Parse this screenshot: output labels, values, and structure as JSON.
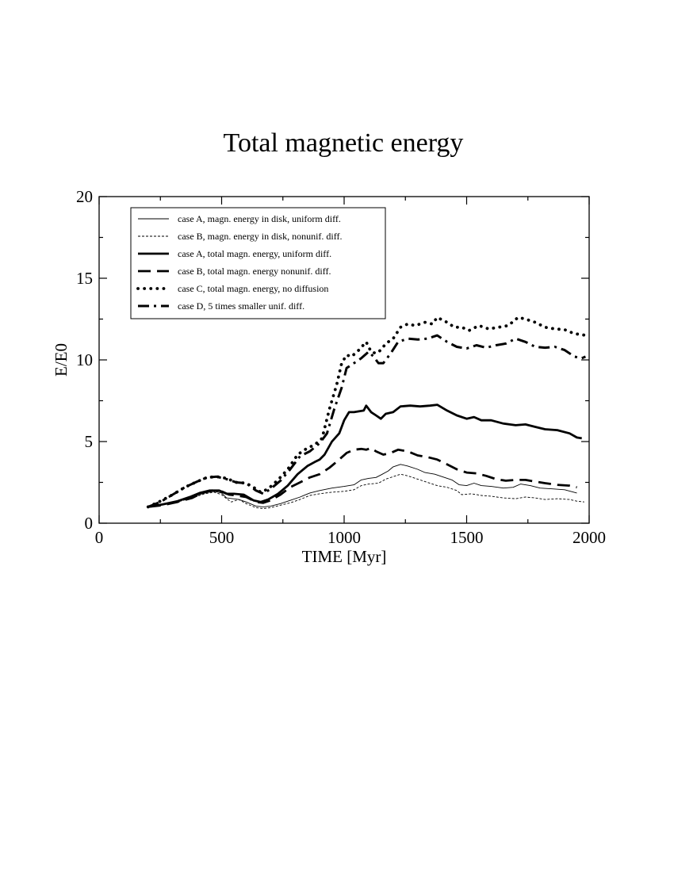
{
  "chart_data": {
    "type": "line",
    "title": "Total magnetic energy",
    "xlabel": "TIME [Myr]",
    "ylabel": "E/E0",
    "xlim": [
      0,
      2000
    ],
    "ylim": [
      0,
      20
    ],
    "xticks": [
      0,
      500,
      1000,
      1500,
      2000
    ],
    "yticks": [
      0,
      5,
      10,
      15,
      20
    ],
    "x_minor_step": 250,
    "y_minor_step": 2.5,
    "grid": false,
    "legend_position": "top-left",
    "series": [
      {
        "name": "case A, magn. energy in disk, uniform diff.",
        "style": "thin-solid",
        "points": [
          [
            200,
            1.0
          ],
          [
            260,
            1.15
          ],
          [
            320,
            1.35
          ],
          [
            380,
            1.6
          ],
          [
            430,
            1.85
          ],
          [
            470,
            1.95
          ],
          [
            500,
            1.85
          ],
          [
            520,
            1.55
          ],
          [
            545,
            1.5
          ],
          [
            570,
            1.45
          ],
          [
            600,
            1.3
          ],
          [
            640,
            1.05
          ],
          [
            670,
            1.0
          ],
          [
            700,
            1.05
          ],
          [
            740,
            1.2
          ],
          [
            780,
            1.4
          ],
          [
            820,
            1.6
          ],
          [
            860,
            1.85
          ],
          [
            900,
            2.0
          ],
          [
            950,
            2.15
          ],
          [
            1000,
            2.25
          ],
          [
            1040,
            2.35
          ],
          [
            1070,
            2.65
          ],
          [
            1100,
            2.75
          ],
          [
            1130,
            2.8
          ],
          [
            1150,
            2.95
          ],
          [
            1180,
            3.2
          ],
          [
            1200,
            3.45
          ],
          [
            1230,
            3.6
          ],
          [
            1260,
            3.5
          ],
          [
            1300,
            3.3
          ],
          [
            1330,
            3.1
          ],
          [
            1370,
            3.0
          ],
          [
            1400,
            2.85
          ],
          [
            1440,
            2.65
          ],
          [
            1470,
            2.35
          ],
          [
            1500,
            2.3
          ],
          [
            1530,
            2.45
          ],
          [
            1560,
            2.3
          ],
          [
            1600,
            2.25
          ],
          [
            1650,
            2.15
          ],
          [
            1690,
            2.2
          ],
          [
            1720,
            2.4
          ],
          [
            1760,
            2.3
          ],
          [
            1800,
            2.15
          ],
          [
            1850,
            2.1
          ],
          [
            1900,
            2.05
          ],
          [
            1950,
            1.85
          ]
        ]
      },
      {
        "name": "case B, magn. energy in disk, nonunif. diff.",
        "style": "thin-dashed",
        "points": [
          [
            200,
            1.0
          ],
          [
            260,
            1.15
          ],
          [
            320,
            1.3
          ],
          [
            380,
            1.55
          ],
          [
            430,
            1.8
          ],
          [
            470,
            1.9
          ],
          [
            500,
            1.75
          ],
          [
            520,
            1.5
          ],
          [
            540,
            1.3
          ],
          [
            570,
            1.45
          ],
          [
            600,
            1.2
          ],
          [
            640,
            0.95
          ],
          [
            670,
            0.9
          ],
          [
            700,
            0.95
          ],
          [
            740,
            1.1
          ],
          [
            780,
            1.25
          ],
          [
            820,
            1.45
          ],
          [
            860,
            1.7
          ],
          [
            900,
            1.8
          ],
          [
            950,
            1.9
          ],
          [
            1000,
            1.95
          ],
          [
            1040,
            2.05
          ],
          [
            1070,
            2.3
          ],
          [
            1100,
            2.4
          ],
          [
            1140,
            2.45
          ],
          [
            1170,
            2.7
          ],
          [
            1200,
            2.85
          ],
          [
            1230,
            3.0
          ],
          [
            1260,
            2.9
          ],
          [
            1300,
            2.7
          ],
          [
            1340,
            2.5
          ],
          [
            1380,
            2.3
          ],
          [
            1420,
            2.2
          ],
          [
            1460,
            2.0
          ],
          [
            1480,
            1.75
          ],
          [
            1520,
            1.8
          ],
          [
            1560,
            1.7
          ],
          [
            1600,
            1.65
          ],
          [
            1650,
            1.55
          ],
          [
            1700,
            1.5
          ],
          [
            1740,
            1.6
          ],
          [
            1780,
            1.55
          ],
          [
            1820,
            1.45
          ],
          [
            1870,
            1.5
          ],
          [
            1920,
            1.45
          ],
          [
            1950,
            1.35
          ],
          [
            1980,
            1.3
          ]
        ]
      },
      {
        "name": "case A, total magn. energy, uniform diff.",
        "style": "thick-solid",
        "points": [
          [
            200,
            1.0
          ],
          [
            260,
            1.15
          ],
          [
            320,
            1.35
          ],
          [
            370,
            1.6
          ],
          [
            410,
            1.85
          ],
          [
            450,
            2.0
          ],
          [
            490,
            2.0
          ],
          [
            520,
            1.8
          ],
          [
            550,
            1.8
          ],
          [
            590,
            1.75
          ],
          [
            630,
            1.4
          ],
          [
            660,
            1.3
          ],
          [
            690,
            1.45
          ],
          [
            730,
            1.8
          ],
          [
            770,
            2.3
          ],
          [
            810,
            3.0
          ],
          [
            850,
            3.5
          ],
          [
            880,
            3.75
          ],
          [
            900,
            3.9
          ],
          [
            920,
            4.2
          ],
          [
            950,
            5.0
          ],
          [
            980,
            5.5
          ],
          [
            1000,
            6.3
          ],
          [
            1020,
            6.8
          ],
          [
            1040,
            6.8
          ],
          [
            1060,
            6.85
          ],
          [
            1080,
            6.9
          ],
          [
            1090,
            7.2
          ],
          [
            1110,
            6.8
          ],
          [
            1130,
            6.6
          ],
          [
            1150,
            6.4
          ],
          [
            1170,
            6.7
          ],
          [
            1200,
            6.8
          ],
          [
            1230,
            7.15
          ],
          [
            1270,
            7.2
          ],
          [
            1310,
            7.15
          ],
          [
            1350,
            7.2
          ],
          [
            1380,
            7.25
          ],
          [
            1420,
            6.9
          ],
          [
            1460,
            6.6
          ],
          [
            1500,
            6.4
          ],
          [
            1530,
            6.5
          ],
          [
            1560,
            6.3
          ],
          [
            1600,
            6.3
          ],
          [
            1650,
            6.1
          ],
          [
            1700,
            6.0
          ],
          [
            1740,
            6.05
          ],
          [
            1780,
            5.9
          ],
          [
            1820,
            5.75
          ],
          [
            1870,
            5.7
          ],
          [
            1920,
            5.5
          ],
          [
            1950,
            5.25
          ],
          [
            1970,
            5.2
          ]
        ]
      },
      {
        "name": "case B, total magn. energy nonunif. diff.",
        "style": "thick-dash",
        "points": [
          [
            200,
            1.0
          ],
          [
            260,
            1.1
          ],
          [
            320,
            1.3
          ],
          [
            380,
            1.55
          ],
          [
            420,
            1.85
          ],
          [
            460,
            2.0
          ],
          [
            500,
            1.95
          ],
          [
            530,
            1.75
          ],
          [
            560,
            1.7
          ],
          [
            600,
            1.6
          ],
          [
            640,
            1.3
          ],
          [
            670,
            1.25
          ],
          [
            700,
            1.4
          ],
          [
            740,
            1.75
          ],
          [
            780,
            2.2
          ],
          [
            820,
            2.5
          ],
          [
            860,
            2.8
          ],
          [
            900,
            3.0
          ],
          [
            940,
            3.4
          ],
          [
            980,
            3.9
          ],
          [
            1010,
            4.3
          ],
          [
            1040,
            4.5
          ],
          [
            1070,
            4.55
          ],
          [
            1090,
            4.5
          ],
          [
            1110,
            4.6
          ],
          [
            1130,
            4.4
          ],
          [
            1160,
            4.2
          ],
          [
            1190,
            4.3
          ],
          [
            1220,
            4.5
          ],
          [
            1260,
            4.4
          ],
          [
            1300,
            4.15
          ],
          [
            1340,
            4.05
          ],
          [
            1380,
            3.9
          ],
          [
            1420,
            3.6
          ],
          [
            1460,
            3.3
          ],
          [
            1500,
            3.1
          ],
          [
            1540,
            3.05
          ],
          [
            1580,
            2.9
          ],
          [
            1620,
            2.7
          ],
          [
            1660,
            2.6
          ],
          [
            1700,
            2.65
          ],
          [
            1740,
            2.65
          ],
          [
            1780,
            2.55
          ],
          [
            1820,
            2.45
          ],
          [
            1870,
            2.35
          ],
          [
            1920,
            2.3
          ],
          [
            1950,
            2.2
          ]
        ]
      },
      {
        "name": "case C, total magn. energy, no diffusion",
        "style": "dotted",
        "points": [
          [
            200,
            1.0
          ],
          [
            250,
            1.35
          ],
          [
            300,
            1.75
          ],
          [
            350,
            2.2
          ],
          [
            400,
            2.55
          ],
          [
            440,
            2.8
          ],
          [
            480,
            2.85
          ],
          [
            520,
            2.75
          ],
          [
            560,
            2.5
          ],
          [
            600,
            2.45
          ],
          [
            630,
            2.2
          ],
          [
            660,
            1.9
          ],
          [
            690,
            2.1
          ],
          [
            730,
            2.65
          ],
          [
            770,
            3.3
          ],
          [
            810,
            4.2
          ],
          [
            850,
            4.6
          ],
          [
            880,
            4.8
          ],
          [
            910,
            5.2
          ],
          [
            940,
            7.0
          ],
          [
            970,
            8.5
          ],
          [
            990,
            9.8
          ],
          [
            1010,
            10.3
          ],
          [
            1030,
            10.2
          ],
          [
            1060,
            10.6
          ],
          [
            1090,
            11.1
          ],
          [
            1110,
            10.5
          ],
          [
            1130,
            10.4
          ],
          [
            1150,
            10.6
          ],
          [
            1170,
            11.0
          ],
          [
            1200,
            11.3
          ],
          [
            1230,
            12.0
          ],
          [
            1260,
            12.2
          ],
          [
            1290,
            12.1
          ],
          [
            1330,
            12.3
          ],
          [
            1360,
            12.2
          ],
          [
            1380,
            12.6
          ],
          [
            1420,
            12.3
          ],
          [
            1450,
            12.0
          ],
          [
            1480,
            12.0
          ],
          [
            1510,
            11.8
          ],
          [
            1550,
            12.1
          ],
          [
            1590,
            11.9
          ],
          [
            1630,
            12.0
          ],
          [
            1670,
            12.1
          ],
          [
            1710,
            12.6
          ],
          [
            1740,
            12.5
          ],
          [
            1780,
            12.3
          ],
          [
            1820,
            12.0
          ],
          [
            1860,
            11.9
          ],
          [
            1900,
            11.85
          ],
          [
            1940,
            11.6
          ],
          [
            1970,
            11.55
          ],
          [
            1985,
            11.5
          ]
        ]
      },
      {
        "name": "case D, 5 times smaller unif. diff.",
        "style": "dash-dot",
        "points": [
          [
            200,
            1.0
          ],
          [
            250,
            1.3
          ],
          [
            300,
            1.75
          ],
          [
            350,
            2.2
          ],
          [
            400,
            2.55
          ],
          [
            440,
            2.8
          ],
          [
            480,
            2.85
          ],
          [
            520,
            2.7
          ],
          [
            560,
            2.5
          ],
          [
            600,
            2.45
          ],
          [
            640,
            2.0
          ],
          [
            670,
            1.8
          ],
          [
            700,
            2.1
          ],
          [
            740,
            2.6
          ],
          [
            780,
            3.3
          ],
          [
            820,
            4.1
          ],
          [
            860,
            4.4
          ],
          [
            900,
            4.9
          ],
          [
            930,
            5.5
          ],
          [
            960,
            7.0
          ],
          [
            990,
            8.3
          ],
          [
            1010,
            9.5
          ],
          [
            1040,
            9.8
          ],
          [
            1070,
            10.1
          ],
          [
            1100,
            10.5
          ],
          [
            1120,
            10.2
          ],
          [
            1140,
            9.8
          ],
          [
            1160,
            9.8
          ],
          [
            1190,
            10.4
          ],
          [
            1220,
            11.1
          ],
          [
            1260,
            11.3
          ],
          [
            1300,
            11.25
          ],
          [
            1340,
            11.3
          ],
          [
            1380,
            11.5
          ],
          [
            1420,
            11.1
          ],
          [
            1460,
            10.8
          ],
          [
            1500,
            10.7
          ],
          [
            1540,
            10.9
          ],
          [
            1580,
            10.75
          ],
          [
            1620,
            10.9
          ],
          [
            1660,
            11.0
          ],
          [
            1700,
            11.3
          ],
          [
            1740,
            11.1
          ],
          [
            1780,
            10.8
          ],
          [
            1820,
            10.75
          ],
          [
            1860,
            10.8
          ],
          [
            1900,
            10.6
          ],
          [
            1940,
            10.2
          ],
          [
            1970,
            10.1
          ],
          [
            1985,
            10.2
          ]
        ]
      }
    ]
  }
}
